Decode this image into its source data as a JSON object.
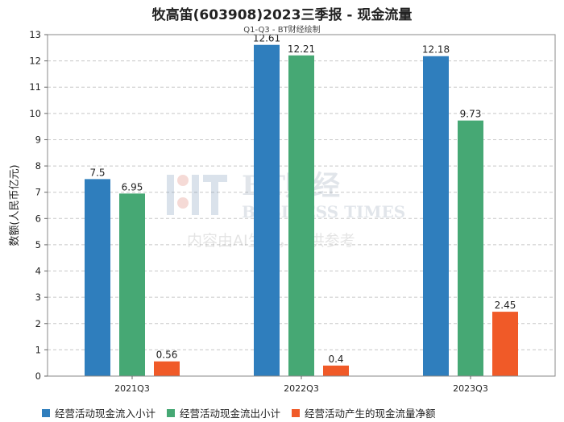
{
  "chart_data": {
    "type": "bar",
    "title": "牧高笛(603908)2023三季报 - 现金流量",
    "subtitle": "Q1-Q3 - BT财经绘制",
    "ylabel": "数额(人民币亿元)",
    "xlabel": "",
    "categories": [
      "2021Q3",
      "2022Q3",
      "2023Q3"
    ],
    "ylim": [
      0,
      13
    ],
    "yticks": [
      0,
      1,
      2,
      3,
      4,
      5,
      6,
      7,
      8,
      9,
      10,
      11,
      12,
      13
    ],
    "grid": true,
    "legend_position": "bottom",
    "series": [
      {
        "name": "经营活动现金流入小计",
        "color": "#2f7ebd",
        "values": [
          7.5,
          12.61,
          12.18
        ],
        "labels": [
          "7.5",
          "12.61",
          "12.18"
        ]
      },
      {
        "name": "经营活动现金流出小计",
        "color": "#46a874",
        "values": [
          6.95,
          12.21,
          9.73
        ],
        "labels": [
          "6.95",
          "12.21",
          "9.73"
        ]
      },
      {
        "name": "经营活动产生的现金流量净额",
        "color": "#f05a28",
        "values": [
          0.56,
          0.4,
          2.45
        ],
        "labels": [
          "0.56",
          "0.4",
          "2.45"
        ]
      }
    ]
  },
  "watermark": {
    "brand": "BT财经",
    "brand_en": "BUSINESS TIMES",
    "notice": "内容由AI生成，仅供参考"
  }
}
